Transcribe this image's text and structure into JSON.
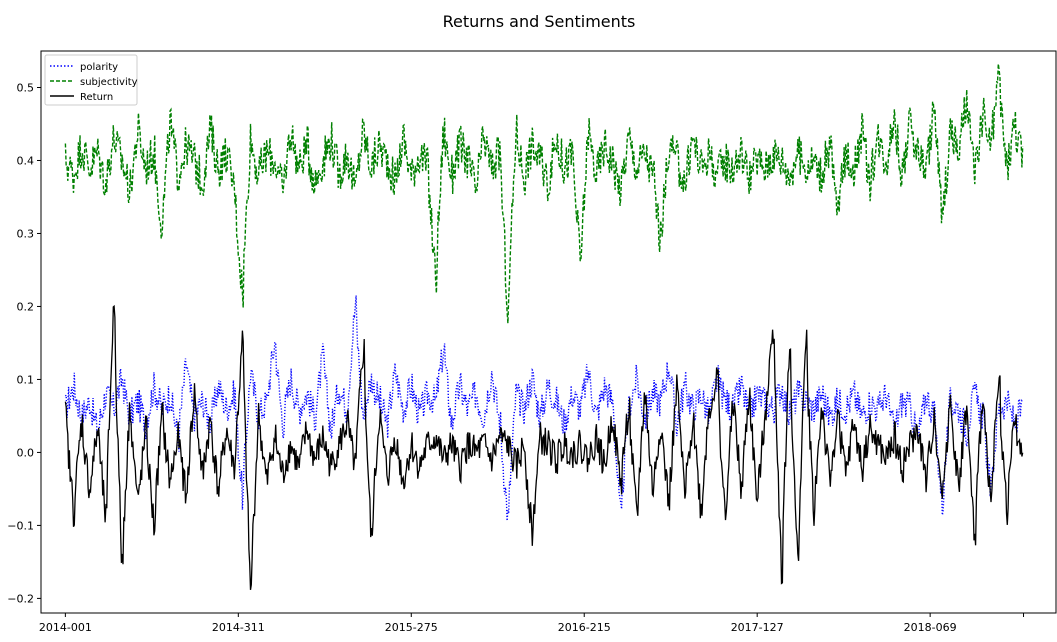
{
  "chart_data": {
    "type": "line",
    "title": "Returns and Sentiments",
    "xlabel": "",
    "ylabel": "",
    "x_tick_labels": [
      "2014-001",
      "2014-311",
      "2015-275",
      "2016-215",
      "2017-127",
      "2018-069"
    ],
    "y_tick_labels": [
      "0.5",
      "0.4",
      "0.3",
      "0.2",
      "0.1",
      "0.0",
      "−0.1",
      "−0.2"
    ],
    "ylim": [
      -0.22,
      0.55
    ],
    "xlim": [
      -30,
      1220
    ],
    "x_tick_index": [
      0,
      213,
      426,
      639,
      852,
      1065
    ],
    "grid": false,
    "legend_position": "upper-left",
    "n_points": 1180,
    "series": [
      {
        "name": "polarity",
        "color": "#0000ff",
        "style": "dotted",
        "sampled_values": [
          0.06,
          0.09,
          0.05,
          0.07,
          0.03,
          0.08,
          0.06,
          0.1,
          0.05,
          0.07,
          0.04,
          0.09,
          0.06,
          0.08,
          0.02,
          0.12,
          0.05,
          0.07,
          0.04,
          0.09,
          0.06,
          0.08,
          -0.06,
          0.11,
          0.05,
          0.07,
          0.15,
          0.04,
          0.1,
          0.06,
          0.08,
          0.05,
          0.13,
          0.03,
          0.09,
          0.06,
          0.2,
          0.05,
          0.1,
          0.07,
          0.04,
          0.11,
          0.06,
          0.09,
          0.05,
          0.08,
          0.07,
          0.14,
          0.04,
          0.09,
          0.06,
          0.08,
          0.05,
          0.11,
          0.04,
          -0.09,
          0.08,
          0.06,
          0.1,
          0.05,
          0.09,
          0.07,
          0.04,
          0.08,
          0.06,
          0.11,
          0.05,
          0.09,
          0.07,
          -0.09,
          0.06,
          0.1,
          0.05,
          0.08,
          0.07,
          0.12,
          0.04,
          0.09,
          0.06,
          0.08,
          0.05,
          0.1,
          0.07,
          0.06,
          0.09,
          0.05,
          0.08,
          0.07,
          0.06,
          0.09,
          0.05,
          0.08,
          0.07,
          0.06,
          0.08,
          0.05,
          0.07,
          0.06,
          0.08,
          0.05,
          0.07,
          0.06,
          0.08,
          0.03,
          0.07,
          0.06,
          0.02,
          0.08,
          0.05,
          -0.07,
          0.07,
          0.06,
          0.03,
          0.08,
          0.05,
          -0.05,
          0.06,
          0.07,
          0.04,
          0.06
        ]
      },
      {
        "name": "subjectivity",
        "color": "#008000",
        "style": "dashed",
        "sampled_values": [
          0.4,
          0.38,
          0.42,
          0.39,
          0.41,
          0.37,
          0.43,
          0.4,
          0.36,
          0.44,
          0.39,
          0.41,
          0.31,
          0.45,
          0.38,
          0.42,
          0.4,
          0.37,
          0.44,
          0.39,
          0.41,
          0.36,
          0.22,
          0.43,
          0.38,
          0.41,
          0.4,
          0.36,
          0.44,
          0.39,
          0.42,
          0.37,
          0.4,
          0.43,
          0.38,
          0.41,
          0.36,
          0.44,
          0.39,
          0.42,
          0.4,
          0.37,
          0.43,
          0.38,
          0.41,
          0.39,
          0.24,
          0.44,
          0.38,
          0.42,
          0.4,
          0.36,
          0.43,
          0.39,
          0.41,
          0.19,
          0.44,
          0.38,
          0.42,
          0.4,
          0.37,
          0.43,
          0.39,
          0.41,
          0.26,
          0.44,
          0.38,
          0.42,
          0.4,
          0.36,
          0.43,
          0.39,
          0.41,
          0.38,
          0.29,
          0.42,
          0.4,
          0.37,
          0.43,
          0.39,
          0.41,
          0.38,
          0.4,
          0.39,
          0.41,
          0.38,
          0.4,
          0.39,
          0.41,
          0.4,
          0.38,
          0.41,
          0.39,
          0.4,
          0.38,
          0.42,
          0.33,
          0.41,
          0.39,
          0.44,
          0.37,
          0.43,
          0.4,
          0.46,
          0.38,
          0.45,
          0.41,
          0.39,
          0.47,
          0.32,
          0.44,
          0.41,
          0.48,
          0.38,
          0.46,
          0.42,
          0.51,
          0.39,
          0.45,
          0.4
        ]
      },
      {
        "name": "Return",
        "color": "#000000",
        "style": "solid",
        "sampled_values": [
          0.05,
          -0.08,
          0.04,
          -0.05,
          0.03,
          -0.09,
          0.2,
          -0.15,
          0.06,
          -0.07,
          0.03,
          -0.1,
          0.05,
          -0.04,
          0.02,
          -0.06,
          0.08,
          -0.03,
          0.04,
          -0.05,
          0.03,
          -0.02,
          0.15,
          -0.19,
          0.05,
          -0.04,
          0.02,
          -0.03,
          0.01,
          -0.02,
          0.03,
          -0.01,
          0.02,
          -0.02,
          0.01,
          0.04,
          -0.02,
          0.14,
          -0.12,
          0.05,
          -0.03,
          0.02,
          -0.04,
          0.01,
          -0.02,
          0.01,
          0.02,
          -0.01,
          0.01,
          -0.02,
          0.01,
          0.0,
          0.01,
          -0.01,
          0.02,
          0.01,
          -0.02,
          0.01,
          -0.11,
          0.02,
          0.01,
          -0.01,
          0.01,
          0.0,
          0.01,
          -0.01,
          0.02,
          -0.02,
          0.05,
          -0.04,
          0.06,
          -0.09,
          0.08,
          -0.05,
          0.04,
          -0.07,
          0.09,
          -0.06,
          0.05,
          -0.08,
          0.06,
          0.1,
          -0.09,
          0.07,
          -0.05,
          0.08,
          -0.07,
          0.06,
          0.17,
          -0.16,
          0.14,
          -0.15,
          0.15,
          -0.08,
          0.06,
          -0.04,
          0.05,
          -0.03,
          0.04,
          -0.02,
          0.03,
          0.01,
          -0.01,
          0.02,
          -0.02,
          0.01,
          0.03,
          -0.04,
          0.05,
          -0.06,
          0.07,
          -0.05,
          0.06,
          -0.12,
          0.08,
          -0.06,
          0.09,
          -0.08,
          0.05,
          -0.02
        ]
      }
    ]
  }
}
